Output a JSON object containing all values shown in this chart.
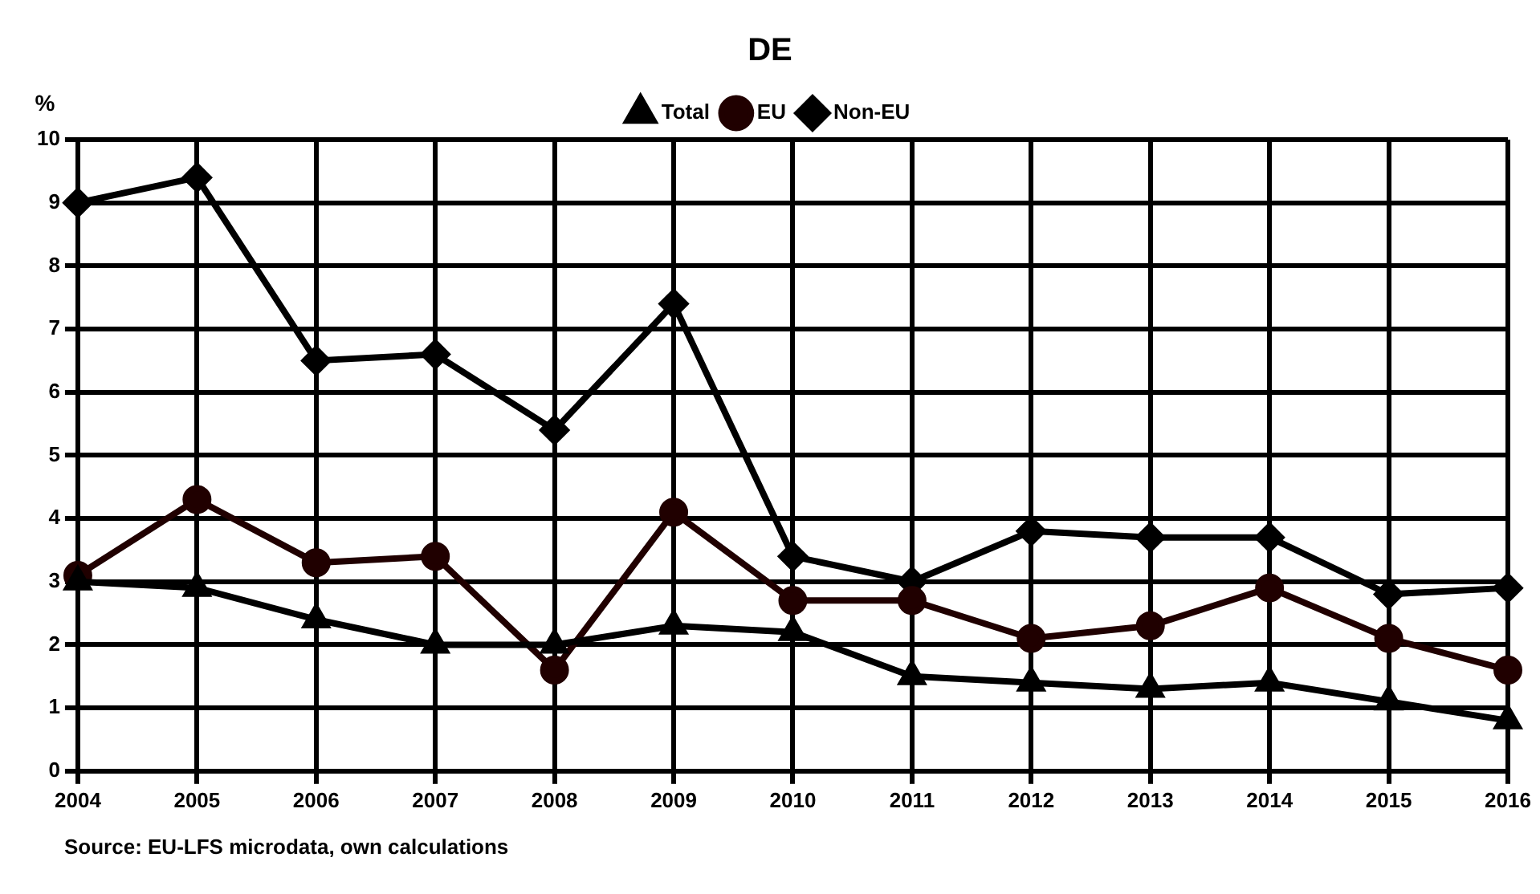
{
  "chart_data": {
    "type": "line",
    "title": "DE",
    "ylabel": "%",
    "categories": [
      "2004",
      "2005",
      "2006",
      "2007",
      "2008",
      "2009",
      "2010",
      "2011",
      "2012",
      "2013",
      "2014",
      "2015",
      "2016"
    ],
    "series": [
      {
        "name": "Total",
        "color": "#000000",
        "marker": "triangle",
        "values": [
          3.0,
          2.9,
          2.4,
          2.0,
          2.0,
          2.3,
          2.2,
          1.5,
          1.4,
          1.3,
          1.4,
          1.1,
          0.8
        ]
      },
      {
        "name": "EU",
        "color": "#200000",
        "marker": "circle",
        "values": [
          3.1,
          4.3,
          3.3,
          3.4,
          1.6,
          4.1,
          2.7,
          2.7,
          2.1,
          2.3,
          2.9,
          2.1,
          1.6
        ]
      },
      {
        "name": "Non-EU",
        "color": "#000000",
        "marker": "diamond",
        "values": [
          9.0,
          9.4,
          6.5,
          6.6,
          5.4,
          7.4,
          3.4,
          3.0,
          3.8,
          3.7,
          3.7,
          2.8,
          2.9
        ]
      }
    ],
    "ylim": [
      0,
      10
    ],
    "yticks": [
      0,
      1,
      2,
      3,
      4,
      5,
      6,
      7,
      8,
      9,
      10
    ],
    "grid": true,
    "legend": "top",
    "line_style": "solid",
    "annotations": [
      "Source: EU-LFS microdata, own calculations"
    ]
  }
}
